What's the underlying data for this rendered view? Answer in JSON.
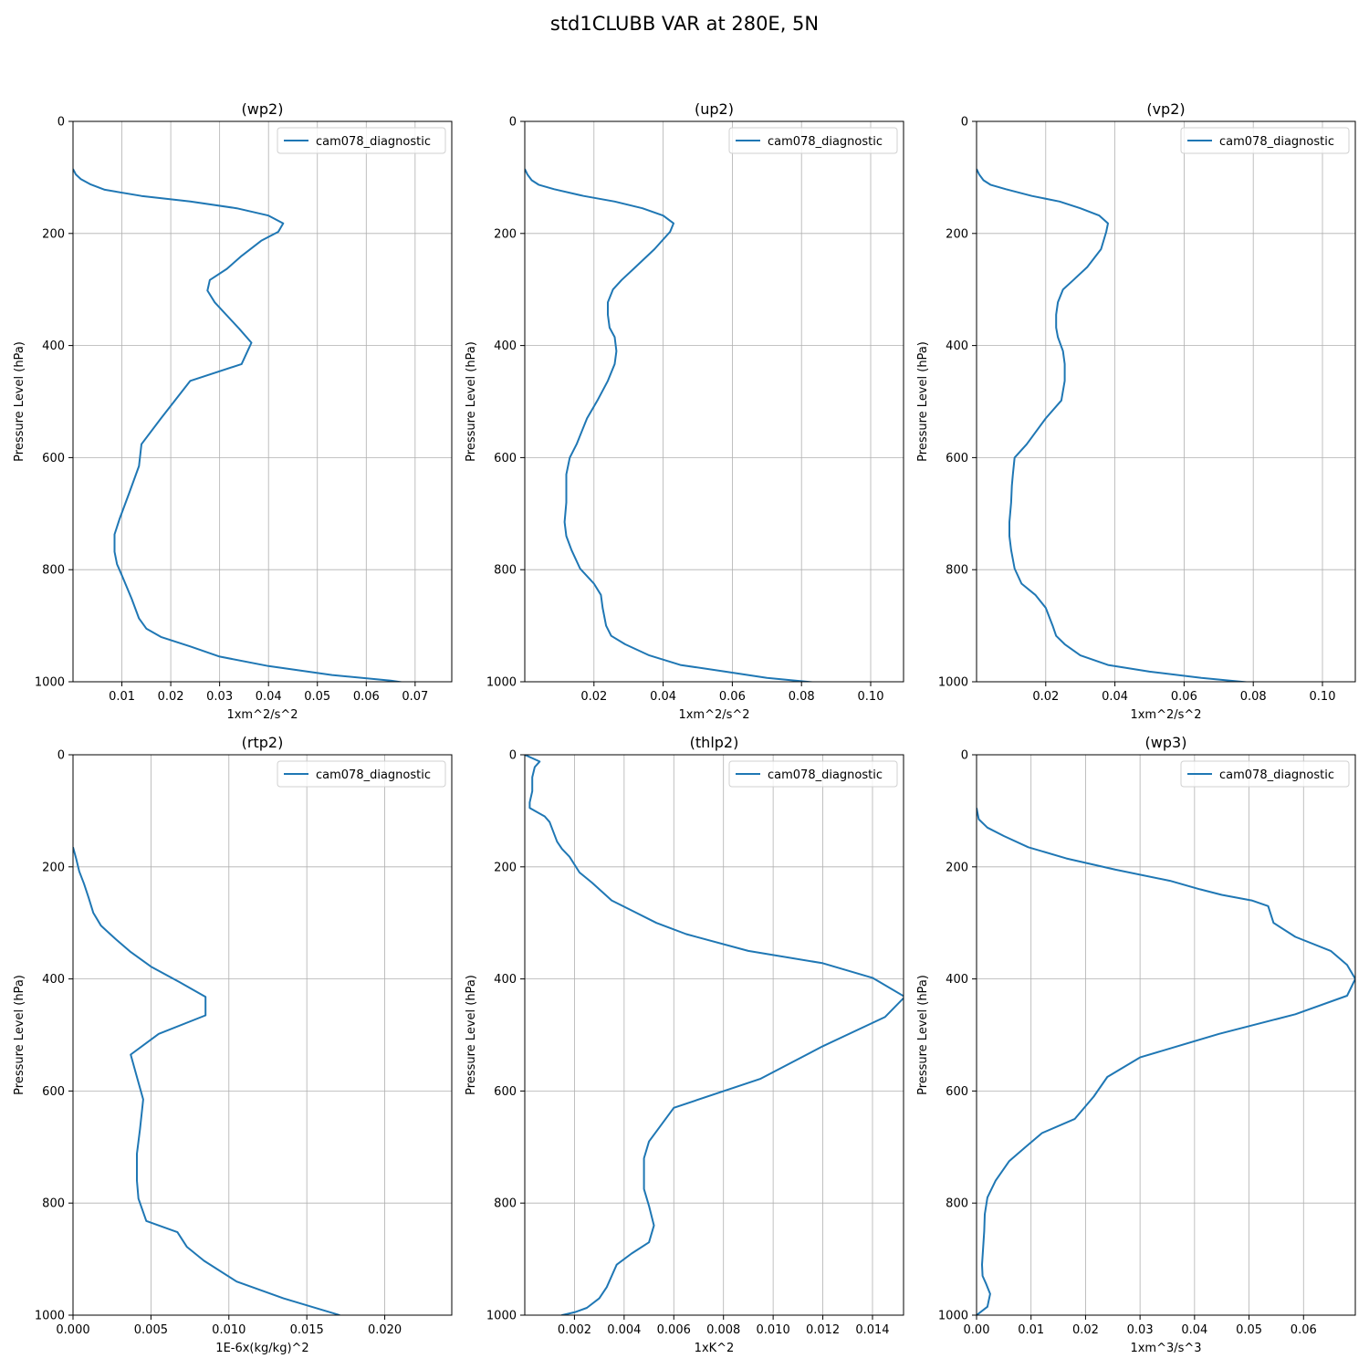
{
  "figure": {
    "title": "std1CLUBB VAR at 280E, 5N"
  },
  "chart_data": [
    {
      "type": "line",
      "title": "(wp2)",
      "xlabel": "1xm^2/s^2",
      "ylabel": "Pressure Level (hPa)",
      "xlim": [
        0.0,
        0.0775
      ],
      "ylim": [
        1000,
        0
      ],
      "grid": true,
      "legend": "top-right",
      "xticks": [
        0.01,
        0.02,
        0.03,
        0.04,
        0.05,
        0.06,
        0.07
      ],
      "xticklabels": [
        "0.01",
        "0.02",
        "0.03",
        "0.04",
        "0.05",
        "0.06",
        "0.07"
      ],
      "yticks": [
        0,
        200,
        400,
        600,
        800,
        1000
      ],
      "yticklabels": [
        "0",
        "200",
        "400",
        "600",
        "800",
        "1000"
      ],
      "series": [
        {
          "name": "cam078_diagnostic",
          "color": "#1f77b4",
          "x": [
            0.0,
            0.0006,
            0.0016,
            0.0035,
            0.0065,
            0.014,
            0.024,
            0.0335,
            0.04,
            0.043,
            0.042,
            0.0385,
            0.0345,
            0.0315,
            0.028,
            0.0275,
            0.029,
            0.034,
            0.0365,
            0.0345,
            0.024,
            0.018,
            0.014,
            0.0135,
            0.0115,
            0.0095,
            0.0085,
            0.0085,
            0.009,
            0.01,
            0.012,
            0.0135,
            0.015,
            0.018,
            0.024,
            0.03,
            0.04,
            0.053,
            0.065,
            0.073,
            0.0775,
            0.07,
            0.0685
          ],
          "y": [
            85,
            95,
            103,
            112,
            122,
            133,
            143,
            155,
            168,
            182,
            197,
            213,
            240,
            263,
            283,
            302,
            323,
            370,
            395,
            433,
            463,
            530,
            576,
            615,
            663,
            710,
            737,
            768,
            790,
            810,
            852,
            887,
            905,
            920,
            937,
            955,
            972,
            988,
            998,
            1008,
            1022,
            1034,
            1040
          ]
        }
      ]
    },
    {
      "type": "line",
      "title": "(up2)",
      "xlabel": "1xm^2/s^2",
      "ylabel": "Pressure Level (hPa)",
      "xlim": [
        0.0,
        0.1095
      ],
      "ylim": [
        1000,
        0
      ],
      "grid": true,
      "legend": "top-right",
      "xticks": [
        0.02,
        0.04,
        0.06,
        0.08,
        0.1
      ],
      "xticklabels": [
        "0.02",
        "0.04",
        "0.06",
        "0.08",
        "0.10"
      ],
      "yticks": [
        0,
        200,
        400,
        600,
        800,
        1000
      ],
      "yticklabels": [
        "0",
        "200",
        "400",
        "600",
        "800",
        "1000"
      ],
      "series": [
        {
          "name": "cam078_diagnostic",
          "color": "#1f77b4",
          "x": [
            0.0,
            0.0008,
            0.002,
            0.004,
            0.0085,
            0.017,
            0.026,
            0.034,
            0.04,
            0.043,
            0.042,
            0.0375,
            0.032,
            0.028,
            0.0255,
            0.024,
            0.024,
            0.0245,
            0.026,
            0.0265,
            0.026,
            0.024,
            0.021,
            0.018,
            0.015,
            0.013,
            0.012,
            0.012,
            0.012,
            0.0115,
            0.012,
            0.0135,
            0.016,
            0.02,
            0.022,
            0.0225,
            0.0235,
            0.025,
            0.029,
            0.036,
            0.045,
            0.058,
            0.07,
            0.085,
            0.1,
            0.109
          ],
          "y": [
            85,
            95,
            105,
            113,
            121,
            133,
            143,
            155,
            168,
            182,
            197,
            228,
            260,
            283,
            300,
            323,
            345,
            368,
            385,
            410,
            433,
            463,
            498,
            530,
            576,
            600,
            630,
            650,
            680,
            715,
            740,
            765,
            798,
            825,
            845,
            868,
            900,
            918,
            933,
            953,
            970,
            982,
            993,
            1002,
            1010,
            1016
          ]
        }
      ]
    },
    {
      "type": "line",
      "title": "(vp2)",
      "xlabel": "1xm^2/s^2",
      "ylabel": "Pressure Level (hPa)",
      "xlim": [
        0.0,
        0.1095
      ],
      "ylim": [
        1000,
        0
      ],
      "grid": true,
      "legend": "top-right",
      "xticks": [
        0.02,
        0.04,
        0.06,
        0.08,
        0.1
      ],
      "xticklabels": [
        "0.02",
        "0.04",
        "0.06",
        "0.08",
        "0.10"
      ],
      "yticks": [
        0,
        200,
        400,
        600,
        800,
        1000
      ],
      "yticklabels": [
        "0",
        "200",
        "400",
        "600",
        "800",
        "1000"
      ],
      "series": [
        {
          "name": "cam078_diagnostic",
          "color": "#1f77b4",
          "x": [
            0.0,
            0.0008,
            0.002,
            0.004,
            0.0085,
            0.016,
            0.024,
            0.03,
            0.0355,
            0.038,
            0.0375,
            0.036,
            0.032,
            0.028,
            0.025,
            0.0235,
            0.023,
            0.023,
            0.0235,
            0.025,
            0.0255,
            0.0255,
            0.0245,
            0.02,
            0.0145,
            0.011,
            0.0105,
            0.0102,
            0.01,
            0.0095,
            0.0095,
            0.01,
            0.011,
            0.013,
            0.017,
            0.02,
            0.022,
            0.023,
            0.0255,
            0.03,
            0.038,
            0.05,
            0.065,
            0.08,
            0.095,
            0.109
          ],
          "y": [
            85,
            95,
            105,
            113,
            121,
            133,
            143,
            155,
            168,
            182,
            197,
            228,
            260,
            283,
            300,
            323,
            345,
            368,
            385,
            410,
            433,
            463,
            498,
            530,
            576,
            600,
            630,
            650,
            680,
            715,
            740,
            765,
            798,
            825,
            845,
            868,
            900,
            918,
            933,
            953,
            970,
            982,
            993,
            1002,
            1010,
            1016
          ]
        }
      ]
    },
    {
      "type": "line",
      "title": "(rtp2)",
      "xlabel": "1E-6x(kg/kg)^2",
      "ylabel": "Pressure Level (hPa)",
      "xlim": [
        0.0,
        0.0243
      ],
      "ylim": [
        1000,
        0
      ],
      "grid": true,
      "legend": "top-right",
      "xticks": [
        0.0,
        0.005,
        0.01,
        0.015,
        0.02
      ],
      "xticklabels": [
        "0.000",
        "0.005",
        "0.010",
        "0.015",
        "0.020"
      ],
      "yticks": [
        0,
        200,
        400,
        600,
        800,
        1000
      ],
      "yticklabels": [
        "0",
        "200",
        "400",
        "600",
        "800",
        "1000"
      ],
      "series": [
        {
          "name": "cam078_diagnostic",
          "color": "#1f77b4",
          "x": [
            0.0,
            0.0002,
            0.0004,
            0.0007,
            0.001,
            0.0013,
            0.0018,
            0.0027,
            0.0037,
            0.005,
            0.0068,
            0.0085,
            0.0085,
            0.0055,
            0.0037,
            0.0041,
            0.0045,
            0.0043,
            0.0041,
            0.0041,
            0.0042,
            0.0047,
            0.0067,
            0.0073,
            0.0084,
            0.0105,
            0.0135,
            0.017,
            0.0195,
            0.021,
            0.022,
            0.0225,
            0.0226,
            0.0235,
            0.0243
          ],
          "y": [
            165,
            185,
            208,
            230,
            255,
            282,
            305,
            328,
            352,
            378,
            405,
            432,
            465,
            498,
            535,
            575,
            615,
            668,
            712,
            760,
            792,
            832,
            852,
            878,
            903,
            940,
            970,
            999,
            1029,
            1045,
            1063,
            1080,
            1095,
            1100,
            1105
          ]
        }
      ]
    },
    {
      "type": "line",
      "title": "(thlp2)",
      "xlabel": "1xK^2",
      "ylabel": "Pressure Level (hPa)",
      "xlim": [
        0.0,
        0.01525
      ],
      "ylim": [
        1000,
        0
      ],
      "grid": true,
      "legend": "top-right",
      "xticks": [
        0.002,
        0.004,
        0.006,
        0.008,
        0.01,
        0.012,
        0.014
      ],
      "xticklabels": [
        "0.002",
        "0.004",
        "0.006",
        "0.008",
        "0.010",
        "0.012",
        "0.014"
      ],
      "yticks": [
        0,
        200,
        400,
        600,
        800,
        1000
      ],
      "yticklabels": [
        "0",
        "200",
        "400",
        "600",
        "800",
        "1000"
      ],
      "series": [
        {
          "name": "cam078_diagnostic",
          "color": "#1f77b4",
          "x": [
            0.0,
            0.0006,
            0.0004,
            0.0003,
            0.0003,
            0.0002,
            0.0002,
            0.0004,
            0.0008,
            0.001,
            0.0013,
            0.0015,
            0.0018,
            0.0022,
            0.0027,
            0.0035,
            0.0044,
            0.0053,
            0.0065,
            0.009,
            0.012,
            0.014,
            0.0153,
            0.0145,
            0.012,
            0.0095,
            0.006,
            0.005,
            0.0048,
            0.0048,
            0.0048,
            0.005,
            0.0052,
            0.005,
            0.0043,
            0.0037,
            0.0033,
            0.003,
            0.0025,
            0.002,
            0.0015,
            0.0014,
            0.002
          ],
          "y": [
            0,
            12,
            22,
            40,
            65,
            85,
            95,
            100,
            110,
            120,
            155,
            168,
            182,
            210,
            228,
            260,
            280,
            300,
            320,
            350,
            372,
            398,
            432,
            468,
            520,
            578,
            630,
            690,
            720,
            745,
            775,
            805,
            840,
            870,
            890,
            910,
            950,
            970,
            987,
            995,
            1000,
            1006,
            1025
          ]
        }
      ]
    },
    {
      "type": "line",
      "title": "(wp3)",
      "xlabel": "1xm^3/s^3",
      "ylabel": "Pressure Level (hPa)",
      "xlim": [
        0.0,
        0.0695
      ],
      "ylim": [
        1000,
        0
      ],
      "grid": true,
      "legend": "top-right",
      "xticks": [
        0.0,
        0.01,
        0.02,
        0.03,
        0.04,
        0.05,
        0.06
      ],
      "xticklabels": [
        "0.00",
        "0.01",
        "0.02",
        "0.03",
        "0.04",
        "0.05",
        "0.06"
      ],
      "yticks": [
        0,
        200,
        400,
        600,
        800,
        1000
      ],
      "yticklabels": [
        "0",
        "200",
        "400",
        "600",
        "800",
        "1000"
      ],
      "series": [
        {
          "name": "cam078_diagnostic",
          "color": "#1f77b4",
          "x": [
            0.0,
            0.0004,
            0.002,
            0.005,
            0.0095,
            0.0165,
            0.0255,
            0.0355,
            0.041,
            0.045,
            0.0505,
            0.0535,
            0.0545,
            0.0585,
            0.065,
            0.068,
            0.0695,
            0.068,
            0.0585,
            0.0445,
            0.03,
            0.024,
            0.0215,
            0.018,
            0.012,
            0.009,
            0.006,
            0.0035,
            0.002,
            0.0015,
            0.0014,
            0.0012,
            0.001,
            0.0011,
            0.0018,
            0.0025,
            0.002,
            0.0
          ],
          "y": [
            95,
            115,
            130,
            145,
            165,
            185,
            205,
            225,
            240,
            250,
            260,
            270,
            300,
            325,
            350,
            375,
            400,
            430,
            463,
            498,
            540,
            575,
            610,
            650,
            675,
            700,
            725,
            760,
            790,
            820,
            850,
            880,
            910,
            930,
            945,
            962,
            985,
            1000
          ]
        }
      ]
    }
  ]
}
